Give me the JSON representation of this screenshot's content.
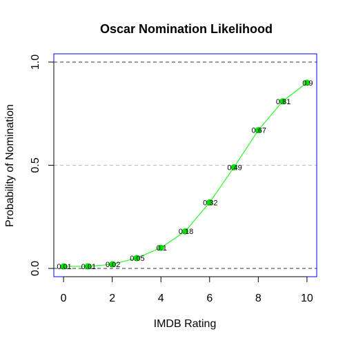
{
  "chart_data": {
    "type": "line",
    "title": "Oscar Nomination Likelihood",
    "xlabel": "IMDB Rating",
    "ylabel": "Probability of Nomination",
    "x": [
      0,
      1,
      2,
      3,
      4,
      5,
      6,
      7,
      8,
      9,
      10
    ],
    "y": [
      0.01,
      0.01,
      0.02,
      0.05,
      0.1,
      0.18,
      0.32,
      0.49,
      0.67,
      0.81,
      0.9
    ],
    "data_labels": [
      "0.01",
      "0.01",
      "0.02",
      "0.05",
      "0.1",
      "0.18",
      "0.32",
      "0.49",
      "0.67",
      "0.81",
      "0.9"
    ],
    "xlim": [
      -0.4,
      10.4
    ],
    "ylim": [
      -0.04,
      1.04
    ],
    "x_ticks": [
      0,
      2,
      4,
      6,
      8,
      10
    ],
    "x_tick_labels": [
      "0",
      "2",
      "4",
      "6",
      "8",
      "10"
    ],
    "y_ticks": [
      0,
      0.5,
      1
    ],
    "y_tick_labels": [
      "0.0",
      "0.5",
      "1.0"
    ],
    "reference_lines": [
      0,
      0.5,
      1
    ],
    "colors": {
      "line": "#00ff00",
      "points": "#00e000",
      "box": "#0000ff",
      "reference_major": "#333333",
      "reference_mid": "#bbbbbb"
    },
    "grid": false,
    "legend": "none"
  }
}
